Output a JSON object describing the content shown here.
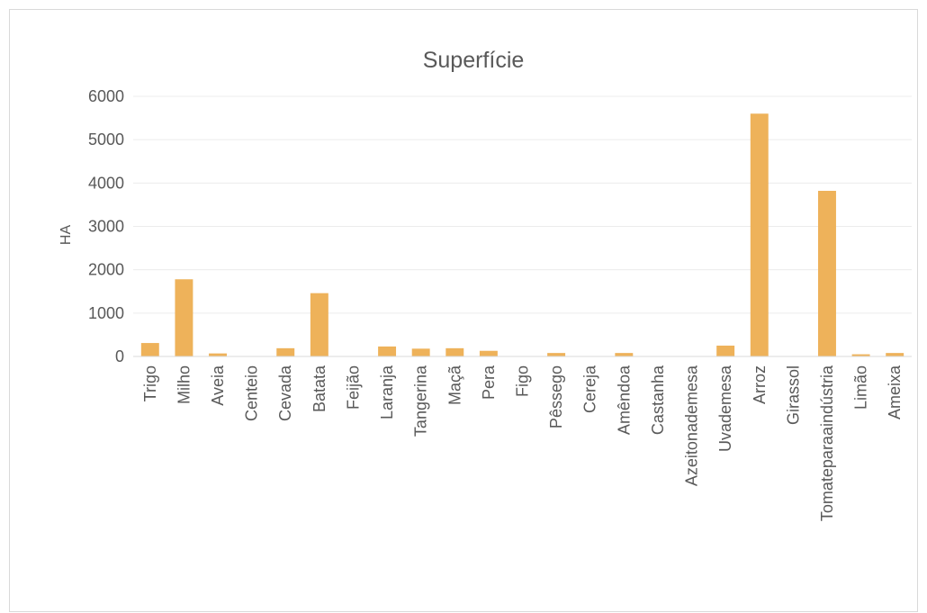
{
  "chart_data": {
    "type": "bar",
    "title": "Superfície",
    "xlabel": "",
    "ylabel": "HA",
    "ylim": [
      0,
      6000
    ],
    "yticks": [
      "0",
      "1000",
      "2000",
      "3000",
      "4000",
      "5000",
      "6000"
    ],
    "grid": true,
    "legend": "none",
    "bar_color": "#EEB25A",
    "categories": [
      "Trigo",
      "Milho",
      "Aveia",
      "Centeio",
      "Cevada",
      "Batata",
      "Feijão",
      "Laranja",
      "Tangerina",
      "Maçã",
      "Pera",
      "Figo",
      "Pêssego",
      "Cereja",
      "Amêndoa",
      "Castanha",
      "Azeitonademesa",
      "Uvademesa",
      "Arroz",
      "Girassol",
      "Tomateparaaindústria",
      "Limão",
      "Ameixa"
    ],
    "values": [
      310,
      1780,
      70,
      5,
      190,
      1460,
      5,
      230,
      180,
      190,
      130,
      5,
      80,
      5,
      80,
      5,
      5,
      250,
      5600,
      5,
      3820,
      50,
      80
    ]
  }
}
